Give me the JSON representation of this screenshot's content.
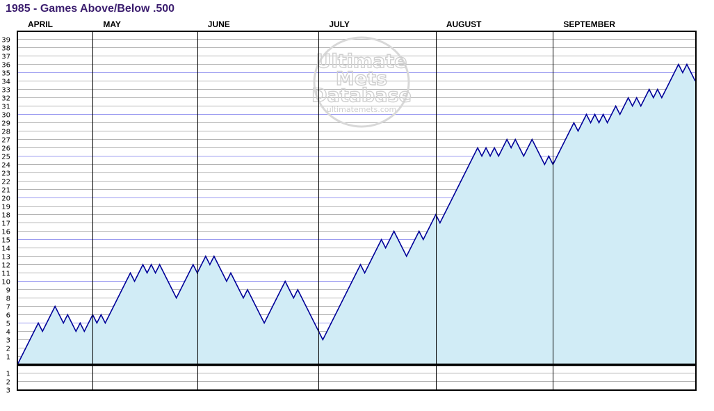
{
  "title": "1985 - Games Above/Below .500",
  "watermark": {
    "line1": "Ultimate",
    "line2": "Mets",
    "line3": "Database",
    "url": "ultimatemets.com"
  },
  "chart_data": {
    "type": "area",
    "title": "1985 - Games Above/Below .500",
    "xlabel": "",
    "ylabel": "",
    "ylim": [
      -3,
      39
    ],
    "yticks_above": [
      1,
      2,
      3,
      4,
      5,
      6,
      7,
      8,
      9,
      10,
      11,
      12,
      13,
      14,
      15,
      16,
      17,
      18,
      19,
      20,
      21,
      22,
      23,
      24,
      25,
      26,
      27,
      28,
      29,
      30,
      31,
      32,
      33,
      34,
      35,
      36,
      37,
      38,
      39
    ],
    "yticks_below": [
      1,
      2,
      3
    ],
    "months": [
      "APRIL",
      "MAY",
      "JUNE",
      "JULY",
      "AUGUST",
      "SEPTEMBER"
    ],
    "month_game_starts": [
      0,
      18,
      43,
      72,
      100,
      128,
      156
    ],
    "x_unit": "game number",
    "series": [
      {
        "values": [
          0,
          1,
          2,
          3,
          4,
          5,
          4,
          5,
          6,
          7,
          6,
          5,
          6,
          5,
          4,
          5,
          4,
          5,
          6,
          5,
          6,
          5,
          6,
          7,
          8,
          9,
          10,
          11,
          10,
          11,
          12,
          11,
          12,
          11,
          12,
          11,
          10,
          9,
          8,
          9,
          10,
          11,
          12,
          11,
          12,
          13,
          12,
          13,
          12,
          11,
          10,
          11,
          10,
          9,
          8,
          9,
          8,
          7,
          6,
          5,
          6,
          7,
          8,
          9,
          10,
          9,
          8,
          9,
          8,
          7,
          6,
          5,
          4,
          3,
          4,
          5,
          6,
          7,
          8,
          9,
          10,
          11,
          12,
          11,
          12,
          13,
          14,
          15,
          14,
          15,
          16,
          15,
          14,
          13,
          14,
          15,
          16,
          15,
          16,
          17,
          18,
          17,
          18,
          19,
          20,
          21,
          22,
          23,
          24,
          25,
          26,
          25,
          26,
          25,
          26,
          25,
          26,
          27,
          26,
          27,
          26,
          25,
          26,
          27,
          26,
          25,
          24,
          25,
          24,
          25,
          26,
          27,
          28,
          29,
          28,
          29,
          30,
          29,
          30,
          29,
          30,
          29,
          30,
          31,
          30,
          31,
          32,
          31,
          32,
          31,
          32,
          33,
          32,
          33,
          32,
          33,
          34,
          35,
          36,
          35,
          36,
          35,
          34
        ]
      }
    ],
    "grid": true,
    "colors": {
      "fill": "#d1ecf6",
      "line": "#000099",
      "grid": "#b4b4b4",
      "grid_major": "#9a9af0",
      "zero_line": "#000000"
    },
    "legend": "none"
  }
}
